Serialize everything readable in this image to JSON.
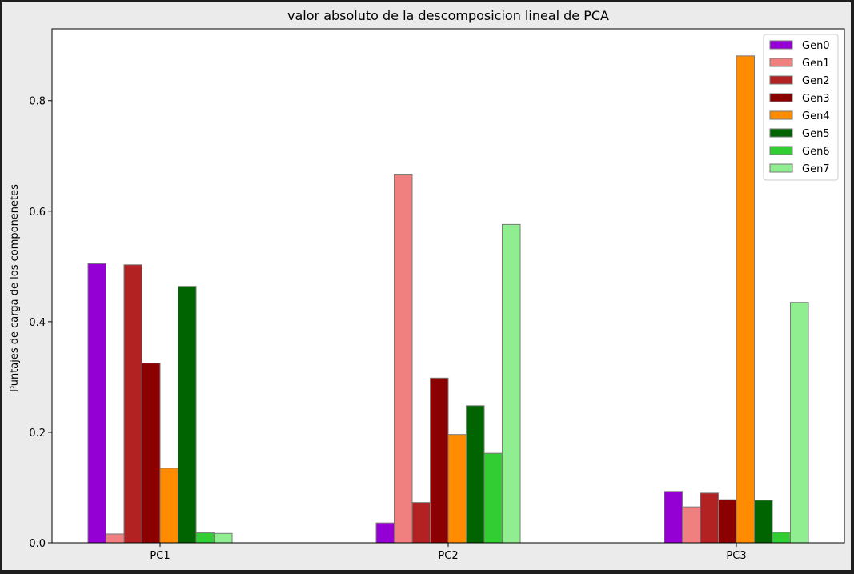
{
  "chart_data": {
    "type": "bar",
    "title": "valor absoluto de la descomposicion lineal de PCA",
    "xlabel": "",
    "ylabel": "Puntajes de carga de los componenetes",
    "categories": [
      "PC1",
      "PC2",
      "PC3"
    ],
    "ylim": [
      0,
      0.93
    ],
    "yticks": [
      0.0,
      0.2,
      0.4,
      0.6,
      0.8
    ],
    "ytick_labels": [
      "0.0",
      "0.2",
      "0.4",
      "0.6",
      "0.8"
    ],
    "grid": false,
    "legend_position": "top-right",
    "series": [
      {
        "name": "Gen0",
        "color": "#9400D3",
        "values": [
          0.505,
          0.036,
          0.093
        ]
      },
      {
        "name": "Gen1",
        "color": "#F08080",
        "values": [
          0.016,
          0.667,
          0.065
        ]
      },
      {
        "name": "Gen2",
        "color": "#B22222",
        "values": [
          0.503,
          0.073,
          0.09
        ]
      },
      {
        "name": "Gen3",
        "color": "#8B0000",
        "values": [
          0.325,
          0.298,
          0.078
        ]
      },
      {
        "name": "Gen4",
        "color": "#FF8C00",
        "values": [
          0.135,
          0.196,
          0.881
        ]
      },
      {
        "name": "Gen5",
        "color": "#006400",
        "values": [
          0.464,
          0.248,
          0.077
        ]
      },
      {
        "name": "Gen6",
        "color": "#32CD32",
        "values": [
          0.018,
          0.162,
          0.019
        ]
      },
      {
        "name": "Gen7",
        "color": "#90EE90",
        "values": [
          0.017,
          0.576,
          0.435
        ]
      }
    ]
  }
}
